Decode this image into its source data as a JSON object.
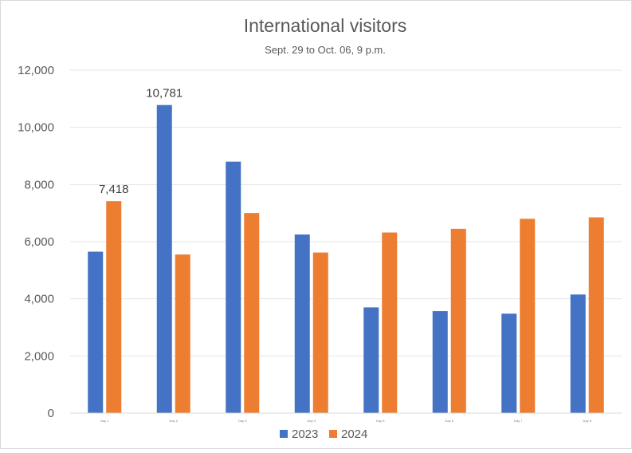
{
  "chart_data": {
    "type": "bar",
    "title": "International visitors",
    "subtitle": "Sept. 29 to Oct. 06, 9 p.m.",
    "categories": [
      "Day 1",
      "Day 2",
      "Day 3",
      "Day 4",
      "Day 5",
      "Day 6",
      "Day 7",
      "Day 8"
    ],
    "series": [
      {
        "name": "2023",
        "color": "#4472c4",
        "values": [
          5650,
          10781,
          8800,
          6250,
          3700,
          3570,
          3480,
          4150
        ]
      },
      {
        "name": "2024",
        "color": "#ed7d31",
        "values": [
          7418,
          5550,
          7000,
          5620,
          6320,
          6450,
          6800,
          6850
        ]
      }
    ],
    "data_labels": [
      {
        "series": 1,
        "index": 0,
        "text": "7,418"
      },
      {
        "series": 0,
        "index": 1,
        "text": "10,781"
      }
    ],
    "ylim": [
      0,
      12000
    ],
    "yticks": [
      0,
      2000,
      4000,
      6000,
      8000,
      10000,
      12000
    ],
    "ytick_labels": [
      "0",
      "2,000",
      "4,000",
      "6,000",
      "8,000",
      "10,000",
      "12,000"
    ],
    "grid": true,
    "legend": "bottom-center"
  }
}
